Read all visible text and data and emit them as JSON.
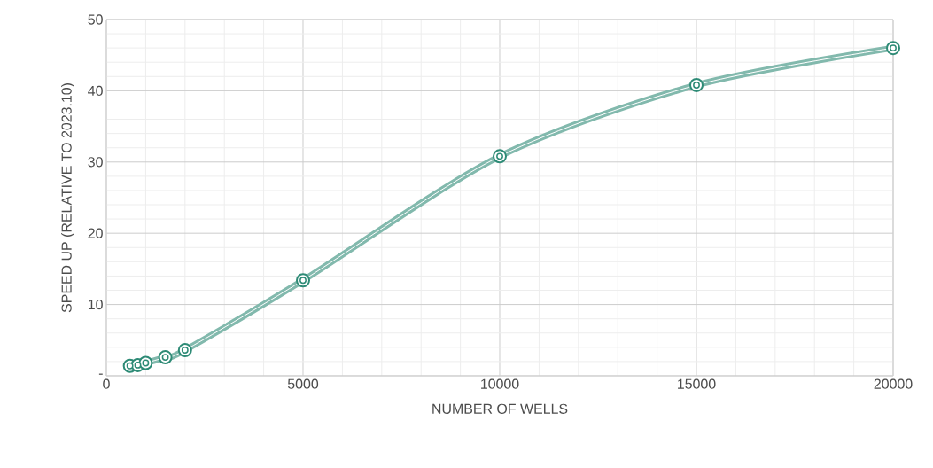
{
  "chart_data": {
    "type": "line",
    "xlabel": "NUMBER OF WELLS",
    "ylabel": "SPEED UP (RELATIVE TO 2023.10)",
    "x": [
      600,
      800,
      1000,
      1500,
      2000,
      5000,
      10000,
      15000,
      20000
    ],
    "series": [
      {
        "color": "#2e8b76",
        "values": [
          1.4,
          1.5,
          1.8,
          2.6,
          3.6,
          13.4,
          30.8,
          40.8,
          46.0
        ]
      }
    ],
    "xlim": [
      0,
      20000
    ],
    "xticks": [
      0,
      5000,
      10000,
      15000,
      20000
    ],
    "ylim": [
      0,
      50
    ],
    "yticks": [
      {
        "value": 0,
        "label": "-"
      },
      10,
      20,
      30,
      40,
      50
    ],
    "grid": true,
    "marker": "circle",
    "line_style": "solid"
  }
}
